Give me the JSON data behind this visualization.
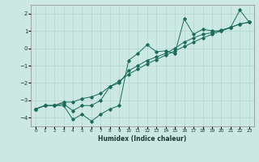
{
  "xlabel": "Humidex (Indice chaleur)",
  "ylabel": "",
  "bg_color": "#cce8e2",
  "grid_color": "#b0d8d0",
  "line_color": "#1a6b5a",
  "x_data": [
    0,
    1,
    2,
    3,
    4,
    5,
    6,
    7,
    8,
    9,
    10,
    11,
    12,
    13,
    14,
    15,
    16,
    17,
    18,
    19,
    20,
    21,
    22,
    23
  ],
  "line1_y": [
    -3.5,
    -3.3,
    -3.3,
    -3.3,
    -4.1,
    -3.8,
    -4.2,
    -3.8,
    -3.5,
    -3.3,
    -0.7,
    -0.3,
    0.2,
    -0.2,
    -0.15,
    -0.3,
    1.7,
    0.8,
    1.1,
    1.0,
    1.0,
    1.2,
    2.2,
    1.5
  ],
  "line2_y": [
    -3.5,
    -3.3,
    -3.3,
    -3.2,
    -3.6,
    -3.3,
    -3.3,
    -3.0,
    -2.2,
    -2.0,
    -1.3,
    -1.0,
    -0.7,
    -0.5,
    -0.3,
    0.0,
    0.35,
    0.6,
    0.8,
    0.9,
    1.05,
    1.2,
    1.4,
    1.5
  ],
  "line3_y": [
    -3.5,
    -3.3,
    -3.3,
    -3.1,
    -3.1,
    -2.9,
    -2.8,
    -2.6,
    -2.2,
    -1.9,
    -1.5,
    -1.2,
    -0.9,
    -0.65,
    -0.4,
    -0.15,
    0.1,
    0.35,
    0.6,
    0.8,
    1.0,
    1.2,
    1.4,
    1.5
  ],
  "ylim": [
    -4.5,
    2.5
  ],
  "yticks": [
    -4,
    -3,
    -2,
    -1,
    0,
    1,
    2
  ],
  "xticks": [
    0,
    1,
    2,
    3,
    4,
    5,
    6,
    7,
    8,
    9,
    10,
    11,
    12,
    13,
    14,
    15,
    16,
    17,
    18,
    19,
    20,
    21,
    22,
    23
  ],
  "xlim": [
    -0.5,
    23.5
  ]
}
